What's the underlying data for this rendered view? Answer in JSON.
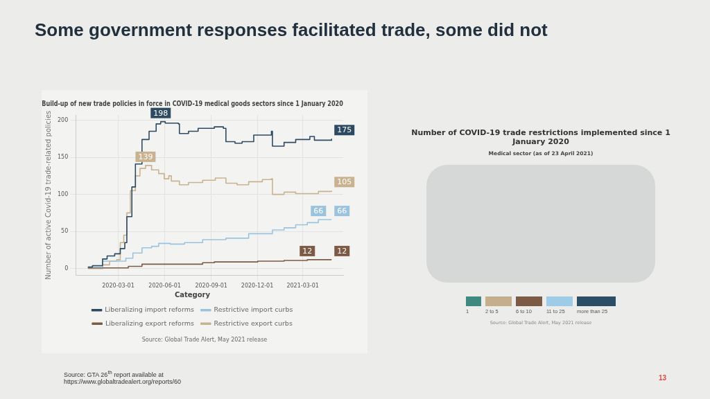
{
  "chart_data": [
    {
      "type": "step",
      "title": "Some government responses facilitated trade, some did not",
      "subtitle": "Build-up of new trade policies in force in COVID-19 medical goods sectors since 1 January 2020",
      "ylabel": "Number of active Covid-19 trade-related policies",
      "legend_title": "Category",
      "legend": "bottom",
      "grid": true,
      "marker": "none",
      "xlim": [
        "2019-12-08",
        "2021-05-20"
      ],
      "ylim": [
        -9,
        207
      ],
      "xticks": [
        "2020-03-01",
        "2020-06-01",
        "2020-09-01",
        "2020-12-01",
        "2021-03-01"
      ],
      "yticks": [
        0,
        50,
        100,
        150,
        200
      ],
      "annotations": [
        "Source: Global Trade Alert, May 2021 release",
        "Source: GTA 26$^{th}$ report available at https://www.globaltradealert.org/reports/60",
        "13"
      ],
      "series": [
        {
          "name": "Liberalizing import reforms",
          "color": "#2e4a62",
          "x": [
            "2020-01-01",
            "2020-01-10",
            "2020-01-29",
            "2020-01-30",
            "2020-02-08",
            "2020-02-23",
            "2020-03-05",
            "2020-03-14",
            "2020-03-18",
            "2020-03-28",
            "2020-04-04",
            "2020-04-17",
            "2020-05-01",
            "2020-05-15",
            "2020-05-24",
            "2020-06-02",
            "2020-06-21",
            "2020-06-28",
            "2020-06-30",
            "2020-07-18",
            "2020-08-06",
            "2020-09-07",
            "2020-09-25",
            "2020-09-30",
            "2020-10-18",
            "2020-11-01",
            "2020-11-24",
            "2020-12-29",
            "2020-12-31",
            "2021-01-23",
            "2021-02-15",
            "2021-03-15",
            "2021-03-24",
            "2021-04-27"
          ],
          "values": [
            2,
            4,
            4,
            13,
            17,
            20,
            27,
            35,
            70,
            110,
            141,
            174,
            185,
            195,
            198,
            196,
            196,
            195,
            182,
            185,
            189,
            191,
            189,
            171,
            169,
            171,
            180,
            185,
            165,
            170,
            174,
            178,
            173,
            175
          ],
          "value_labels": [
            null,
            null,
            null,
            null,
            null,
            null,
            null,
            null,
            null,
            null,
            null,
            null,
            null,
            null,
            "198",
            null,
            null,
            null,
            null,
            null,
            null,
            null,
            null,
            null,
            null,
            null,
            null,
            null,
            null,
            null,
            null,
            null,
            null,
            "175"
          ]
        },
        {
          "name": "Restrictive import curbs",
          "color": "#9cc3de",
          "x": [
            "2020-01-01",
            "2020-01-29",
            "2020-01-30",
            "2020-02-27",
            "2020-03-16",
            "2020-03-30",
            "2020-04-17",
            "2020-05-06",
            "2020-05-20",
            "2020-06-12",
            "2020-07-10",
            "2020-08-15",
            "2020-09-30",
            "2020-11-14",
            "2020-12-31",
            "2021-01-23",
            "2021-02-15",
            "2021-03-10",
            "2021-04-01",
            "2021-04-27"
          ],
          "values": [
            2,
            2,
            10,
            10,
            14,
            21,
            28,
            30,
            34,
            33,
            35,
            39,
            41,
            47,
            52,
            55,
            59,
            62,
            66,
            66
          ],
          "value_labels": [
            null,
            null,
            null,
            null,
            null,
            null,
            null,
            null,
            null,
            null,
            null,
            null,
            null,
            null,
            null,
            null,
            null,
            null,
            "66",
            "66"
          ]
        },
        {
          "name": "Liberalizing export reforms",
          "color": "#7d5a45",
          "x": [
            "2020-01-01",
            "2020-03-12",
            "2020-03-21",
            "2020-04-17",
            "2020-06-30",
            "2020-08-15",
            "2020-09-07",
            "2020-10-22",
            "2020-12-02",
            "2021-01-23",
            "2021-03-10",
            "2021-04-27"
          ],
          "values": [
            1,
            1,
            3,
            6,
            6,
            8,
            9,
            9,
            10,
            11,
            12,
            12
          ],
          "value_labels": [
            null,
            null,
            null,
            null,
            null,
            null,
            null,
            null,
            null,
            null,
            "12",
            "12"
          ]
        },
        {
          "name": "Restrictive export curbs",
          "color": "#c9b28f",
          "x": [
            "2020-01-01",
            "2020-01-29",
            "2020-01-30",
            "2020-02-13",
            "2020-02-27",
            "2020-03-05",
            "2020-03-12",
            "2020-03-18",
            "2020-03-25",
            "2020-04-04",
            "2020-04-13",
            "2020-04-24",
            "2020-05-06",
            "2020-05-20",
            "2020-05-31",
            "2020-06-09",
            "2020-06-14",
            "2020-06-30",
            "2020-07-18",
            "2020-08-15",
            "2020-09-09",
            "2020-09-30",
            "2020-10-22",
            "2020-11-14",
            "2020-12-11",
            "2020-12-29",
            "2020-12-31",
            "2021-01-23",
            "2021-02-15",
            "2021-04-01",
            "2021-04-27"
          ],
          "values": [
            0,
            0,
            5,
            10,
            12,
            35,
            45,
            75,
            105,
            125,
            135,
            139,
            133,
            128,
            121,
            125,
            118,
            113,
            116,
            119,
            122,
            115,
            113,
            117,
            120,
            121,
            100,
            103,
            101,
            104,
            105
          ],
          "value_labels": [
            null,
            null,
            null,
            null,
            null,
            null,
            null,
            null,
            null,
            null,
            null,
            "139",
            null,
            null,
            null,
            null,
            null,
            null,
            null,
            null,
            null,
            null,
            null,
            null,
            null,
            null,
            null,
            null,
            null,
            null,
            "105"
          ]
        }
      ]
    },
    {
      "type": "other",
      "title": "Number of COVID-19 trade restrictions implemented since 1 January 2020",
      "subtitle": "Medical sector (as of 23 April 2021)",
      "categories": [
        "1",
        "2 to 5",
        "6 to 10",
        "11 to 25",
        "more than 25"
      ],
      "colors": [
        "#3f8a80",
        "#c4ae8c",
        "#7b5a46",
        "#9ecbe6",
        "#2c4d66"
      ],
      "annotations": [
        "Source: Global Trade Alert, May 2021 release"
      ]
    }
  ]
}
